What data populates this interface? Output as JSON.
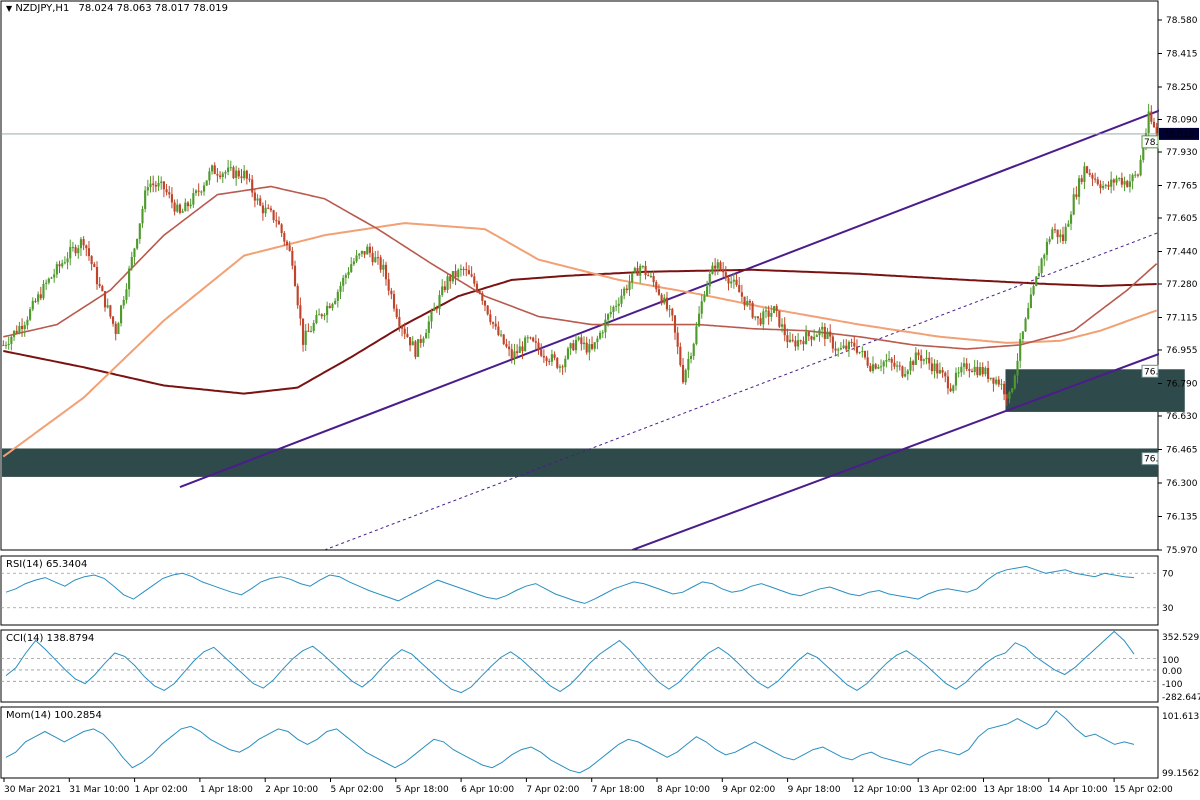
{
  "header": {
    "symbol": "NZDJPY,H1",
    "ohlc": "78.024 78.063 78.017 78.019"
  },
  "colors": {
    "bull": "#4f9a2c",
    "bear": "#c0442a",
    "ma_fast": "#b85a4e",
    "ma_mid": "#f2a074",
    "ma_slow": "#7a1212",
    "channel": "#4b1c8c",
    "zone": "#2f4a4a",
    "indicator": "#2a8fc0"
  },
  "chart_data": [
    {
      "name": "price",
      "type": "candlestick",
      "y_ticks": [
        "78.580",
        "78.415",
        "78.250",
        "78.090",
        "77.930",
        "77.765",
        "77.605",
        "77.440",
        "77.280",
        "77.115",
        "76.955",
        "76.790",
        "76.630",
        "76.465",
        "76.300",
        "76.135",
        "75.970"
      ],
      "ylim": [
        75.97,
        78.58
      ],
      "x_ticks": [
        "30 Mar 2021",
        "31 Mar 10:00",
        "1 Apr 02:00",
        "1 Apr 18:00",
        "2 Apr 10:00",
        "5 Apr 02:00",
        "5 Apr 18:00",
        "6 Apr 10:00",
        "7 Apr 02:00",
        "7 Apr 18:00",
        "8 Apr 10:00",
        "9 Apr 02:00",
        "9 Apr 18:00",
        "12 Apr 10:00",
        "13 Apr 02:00",
        "13 Apr 18:00",
        "14 Apr 10:00",
        "15 Apr 02:00"
      ],
      "current_price": "78.019",
      "price_tag": "78.",
      "zone_tag_1": "76.",
      "zone_tag_2": "76.",
      "path": [
        [
          0,
          76.98
        ],
        [
          8,
          77.1
        ],
        [
          16,
          77.28
        ],
        [
          24,
          77.42
        ],
        [
          30,
          77.5
        ],
        [
          36,
          77.26
        ],
        [
          42,
          77.05
        ],
        [
          48,
          77.4
        ],
        [
          54,
          77.78
        ],
        [
          60,
          77.75
        ],
        [
          66,
          77.62
        ],
        [
          72,
          77.72
        ],
        [
          78,
          77.84
        ],
        [
          84,
          77.83
        ],
        [
          90,
          77.82
        ],
        [
          96,
          77.66
        ],
        [
          102,
          77.6
        ],
        [
          108,
          77.4
        ],
        [
          112,
          77.0
        ],
        [
          118,
          77.12
        ],
        [
          124,
          77.22
        ],
        [
          130,
          77.38
        ],
        [
          136,
          77.45
        ],
        [
          142,
          77.35
        ],
        [
          148,
          77.1
        ],
        [
          154,
          76.95
        ],
        [
          160,
          77.12
        ],
        [
          166,
          77.3
        ],
        [
          172,
          77.35
        ],
        [
          178,
          77.25
        ],
        [
          184,
          77.05
        ],
        [
          190,
          76.92
        ],
        [
          196,
          77.0
        ],
        [
          202,
          76.94
        ],
        [
          208,
          76.88
        ],
        [
          214,
          77.0
        ],
        [
          220,
          76.95
        ],
        [
          226,
          77.12
        ],
        [
          232,
          77.25
        ],
        [
          238,
          77.37
        ],
        [
          244,
          77.27
        ],
        [
          250,
          77.1
        ],
        [
          254,
          76.82
        ],
        [
          258,
          77.0
        ],
        [
          262,
          77.25
        ],
        [
          266,
          77.38
        ],
        [
          270,
          77.33
        ],
        [
          276,
          77.22
        ],
        [
          282,
          77.1
        ],
        [
          288,
          77.15
        ],
        [
          294,
          76.98
        ],
        [
          300,
          77.02
        ],
        [
          306,
          77.05
        ],
        [
          312,
          76.95
        ],
        [
          318,
          76.98
        ],
        [
          324,
          76.88
        ],
        [
          330,
          76.9
        ],
        [
          336,
          76.85
        ],
        [
          342,
          76.93
        ],
        [
          348,
          76.87
        ],
        [
          354,
          76.78
        ],
        [
          360,
          76.88
        ],
        [
          366,
          76.85
        ],
        [
          372,
          76.8
        ],
        [
          376,
          76.72
        ],
        [
          380,
          76.98
        ],
        [
          384,
          77.2
        ],
        [
          388,
          77.4
        ],
        [
          392,
          77.55
        ],
        [
          396,
          77.5
        ],
        [
          400,
          77.7
        ],
        [
          404,
          77.85
        ],
        [
          408,
          77.8
        ],
        [
          412,
          77.75
        ],
        [
          416,
          77.8
        ],
        [
          420,
          77.78
        ],
        [
          424,
          77.82
        ],
        [
          428,
          78.1
        ],
        [
          431,
          78.02
        ]
      ],
      "ma_fast": [
        [
          0,
          77.02
        ],
        [
          20,
          77.08
        ],
        [
          40,
          77.25
        ],
        [
          60,
          77.52
        ],
        [
          80,
          77.72
        ],
        [
          100,
          77.76
        ],
        [
          120,
          77.7
        ],
        [
          140,
          77.55
        ],
        [
          160,
          77.38
        ],
        [
          180,
          77.22
        ],
        [
          200,
          77.12
        ],
        [
          220,
          77.08
        ],
        [
          240,
          77.08
        ],
        [
          260,
          77.08
        ],
        [
          280,
          77.06
        ],
        [
          300,
          77.05
        ],
        [
          320,
          77.02
        ],
        [
          340,
          76.98
        ],
        [
          360,
          76.96
        ],
        [
          380,
          76.98
        ],
        [
          400,
          77.05
        ],
        [
          420,
          77.25
        ],
        [
          431,
          77.38
        ]
      ],
      "ma_mid": [
        [
          0,
          76.43
        ],
        [
          30,
          76.72
        ],
        [
          60,
          77.1
        ],
        [
          90,
          77.42
        ],
        [
          120,
          77.52
        ],
        [
          150,
          77.58
        ],
        [
          180,
          77.55
        ],
        [
          200,
          77.4
        ],
        [
          230,
          77.3
        ],
        [
          260,
          77.23
        ],
        [
          290,
          77.15
        ],
        [
          320,
          77.08
        ],
        [
          350,
          77.02
        ],
        [
          375,
          76.99
        ],
        [
          395,
          77.0
        ],
        [
          410,
          77.05
        ],
        [
          431,
          77.15
        ]
      ],
      "ma_slow": [
        [
          0,
          76.95
        ],
        [
          30,
          76.87
        ],
        [
          60,
          76.78
        ],
        [
          90,
          76.74
        ],
        [
          110,
          76.77
        ],
        [
          130,
          76.92
        ],
        [
          150,
          77.08
        ],
        [
          170,
          77.22
        ],
        [
          190,
          77.3
        ],
        [
          210,
          77.32
        ],
        [
          240,
          77.34
        ],
        [
          280,
          77.35
        ],
        [
          320,
          77.33
        ],
        [
          360,
          77.3
        ],
        [
          390,
          77.28
        ],
        [
          410,
          77.27
        ],
        [
          431,
          77.28
        ]
      ],
      "zones": [
        [
          0,
          76.47,
          431,
          76.33
        ],
        [
          375,
          76.86,
          441,
          76.65
        ]
      ],
      "channel_upper": [
        [
          66,
          76.28
        ],
        [
          445,
          78.2
        ]
      ],
      "channel_mid": [
        [
          120,
          75.97
        ],
        [
          445,
          77.6
        ]
      ],
      "channel_lower": [
        [
          235,
          75.97
        ],
        [
          445,
          77.0
        ]
      ]
    },
    {
      "name": "RSI(14)",
      "type": "line",
      "value_label": "65.3404",
      "y_ticks": [
        "70",
        "30"
      ],
      "ylim": [
        10,
        90
      ],
      "levels": [
        70,
        30
      ],
      "values": [
        48,
        52,
        58,
        62,
        65,
        60,
        55,
        62,
        66,
        68,
        64,
        55,
        45,
        40,
        48,
        56,
        64,
        68,
        70,
        66,
        60,
        56,
        52,
        48,
        45,
        52,
        60,
        64,
        66,
        63,
        58,
        55,
        62,
        68,
        66,
        60,
        55,
        50,
        46,
        42,
        38,
        44,
        50,
        56,
        62,
        58,
        54,
        50,
        46,
        42,
        40,
        44,
        50,
        55,
        58,
        52,
        46,
        42,
        38,
        35,
        40,
        46,
        52,
        56,
        60,
        58,
        54,
        50,
        46,
        48,
        54,
        60,
        58,
        52,
        48,
        50,
        55,
        58,
        54,
        50,
        46,
        44,
        48,
        52,
        54,
        50,
        46,
        44,
        48,
        50,
        46,
        44,
        42,
        40,
        46,
        50,
        52,
        50,
        48,
        52,
        62,
        70,
        74,
        76,
        78,
        74,
        70,
        72,
        74,
        70,
        68,
        66,
        70,
        68,
        66,
        65
      ]
    },
    {
      "name": "CCI(14)",
      "type": "line",
      "value_label": "138.8794",
      "y_ticks": [
        "352.5292",
        "100",
        "0.00",
        "-100",
        "-282.6470"
      ],
      "ylim": [
        -282.647,
        352.5292
      ],
      "levels": [
        100,
        0,
        -100
      ],
      "values": [
        -50,
        20,
        150,
        260,
        180,
        90,
        0,
        -80,
        -120,
        -40,
        60,
        150,
        120,
        40,
        -60,
        -140,
        -180,
        -120,
        -20,
        80,
        160,
        200,
        120,
        40,
        -40,
        -120,
        -160,
        -90,
        10,
        100,
        170,
        210,
        140,
        60,
        -20,
        -100,
        -150,
        -80,
        20,
        110,
        180,
        140,
        60,
        -20,
        -100,
        -170,
        -200,
        -150,
        -60,
        30,
        110,
        160,
        100,
        20,
        -60,
        -140,
        -190,
        -130,
        -40,
        60,
        140,
        200,
        260,
        180,
        80,
        -20,
        -110,
        -170,
        -110,
        -20,
        70,
        150,
        200,
        140,
        60,
        -30,
        -110,
        -160,
        -100,
        -10,
        80,
        150,
        110,
        30,
        -50,
        -130,
        -180,
        -120,
        -30,
        60,
        130,
        170,
        110,
        40,
        -40,
        -120,
        -170,
        -110,
        -20,
        60,
        120,
        150,
        240,
        200,
        120,
        60,
        0,
        -40,
        20,
        100,
        180,
        260,
        340,
        260,
        140
      ]
    },
    {
      "name": "Mom(14)",
      "type": "line",
      "value_label": "100.2854",
      "y_ticks": [
        "101.6135",
        "99.1562"
      ],
      "ylim": [
        99.0,
        101.75
      ],
      "values": [
        99.8,
        100.0,
        100.4,
        100.6,
        100.8,
        100.6,
        100.4,
        100.6,
        100.8,
        100.9,
        100.7,
        100.3,
        99.8,
        99.4,
        99.6,
        99.9,
        100.3,
        100.6,
        100.9,
        101.0,
        100.8,
        100.5,
        100.3,
        100.1,
        100.0,
        100.2,
        100.5,
        100.7,
        100.9,
        100.8,
        100.5,
        100.3,
        100.5,
        100.8,
        100.9,
        100.6,
        100.3,
        100.0,
        99.8,
        99.6,
        99.4,
        99.6,
        99.9,
        100.2,
        100.5,
        100.4,
        100.1,
        99.9,
        99.7,
        99.5,
        99.4,
        99.6,
        99.9,
        100.1,
        100.2,
        100.0,
        99.7,
        99.5,
        99.3,
        99.2,
        99.4,
        99.7,
        100.0,
        100.3,
        100.5,
        100.4,
        100.2,
        100.0,
        99.8,
        100.0,
        100.3,
        100.6,
        100.4,
        100.1,
        99.9,
        100.0,
        100.2,
        100.4,
        100.2,
        100.0,
        99.8,
        99.7,
        99.9,
        100.1,
        100.2,
        100.0,
        99.8,
        99.7,
        99.9,
        100.0,
        99.8,
        99.7,
        99.6,
        99.5,
        99.8,
        100.0,
        100.1,
        100.0,
        99.9,
        100.1,
        100.6,
        100.9,
        101.0,
        101.1,
        101.3,
        101.1,
        100.9,
        101.1,
        101.6,
        101.3,
        100.9,
        100.6,
        100.7,
        100.5,
        100.3,
        100.4,
        100.3
      ]
    }
  ]
}
